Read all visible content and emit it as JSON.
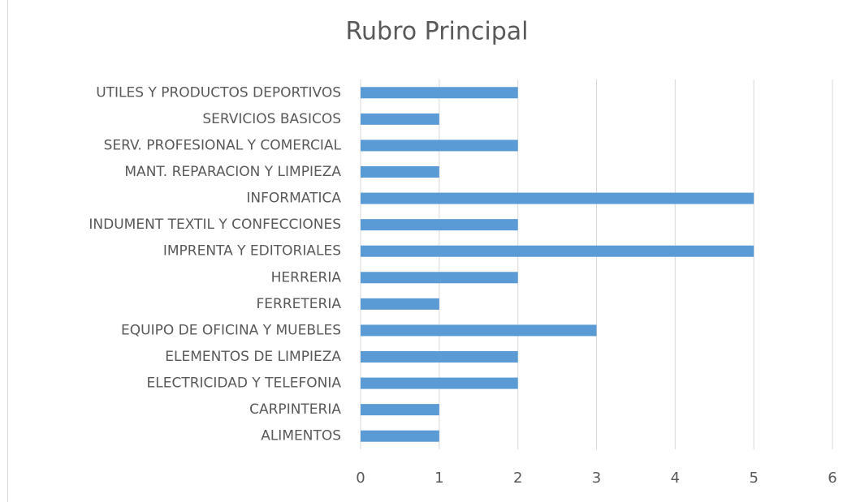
{
  "chart_data": {
    "type": "bar",
    "orientation": "horizontal",
    "title": "Rubro Principal",
    "categories": [
      "UTILES Y PRODUCTOS DEPORTIVOS",
      "SERVICIOS BASICOS",
      "SERV. PROFESIONAL Y COMERCIAL",
      "MANT. REPARACION Y LIMPIEZA",
      "INFORMATICA",
      "INDUMENT TEXTIL Y CONFECCIONES",
      "IMPRENTA Y EDITORIALES",
      "HERRERIA",
      "FERRETERIA",
      "EQUIPO DE OFICINA Y MUEBLES",
      "ELEMENTOS DE LIMPIEZA",
      "ELECTRICIDAD Y TELEFONIA",
      "CARPINTERIA",
      "ALIMENTOS"
    ],
    "values": [
      2,
      1,
      2,
      1,
      5,
      2,
      5,
      2,
      1,
      3,
      2,
      2,
      1,
      1
    ],
    "color": "#5b9bd5",
    "xlim": [
      0,
      6
    ],
    "xticks": [
      0,
      1,
      2,
      3,
      4,
      5,
      6
    ],
    "grid": true
  }
}
